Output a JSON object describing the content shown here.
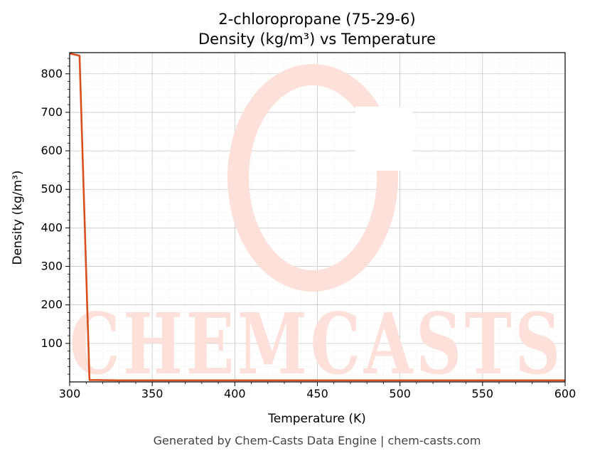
{
  "chart_data": {
    "type": "line",
    "title_line1": "2-chloropropane (75-29-6)",
    "title_line2": "Density (kg/m³) vs Temperature",
    "xlabel": "Temperature (K)",
    "ylabel": "Density (kg/m³)",
    "xlim": [
      300,
      600
    ],
    "ylim": [
      0,
      855
    ],
    "xticks": [
      300,
      350,
      400,
      450,
      500,
      550,
      600
    ],
    "yticks": [
      100,
      200,
      300,
      400,
      500,
      600,
      700,
      800
    ],
    "grid": true,
    "series": [
      {
        "color": "#d9501e",
        "x": [
          300,
          306,
          312,
          330,
          360,
          400,
          450,
          500,
          550,
          600
        ],
        "y": [
          853,
          847,
          5,
          4,
          4,
          4,
          4,
          4,
          4,
          4
        ]
      }
    ]
  },
  "watermark": {
    "text": "CHEMCASTS",
    "color": "#fde0da"
  },
  "footer": "Generated by Chem-Casts Data Engine | chem-casts.com"
}
